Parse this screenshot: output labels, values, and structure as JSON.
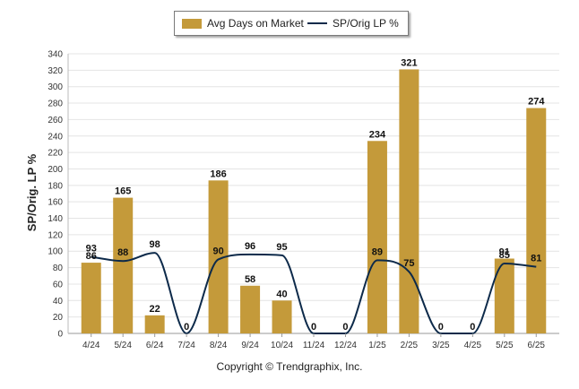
{
  "chart_data": {
    "type": "bar",
    "categories": [
      "4/24",
      "5/24",
      "6/24",
      "7/24",
      "8/24",
      "9/24",
      "10/24",
      "11/24",
      "12/24",
      "1/25",
      "2/25",
      "3/25",
      "4/25",
      "5/25",
      "6/25"
    ],
    "series": [
      {
        "name": "Avg Days on Market",
        "type": "bar",
        "color": "#c49a3a",
        "values": [
          86,
          165,
          22,
          0,
          186,
          58,
          40,
          0,
          0,
          234,
          321,
          0,
          0,
          91,
          274
        ]
      },
      {
        "name": "SP/Orig LP %",
        "type": "line",
        "color": "#0d2a4a",
        "values": [
          93,
          88,
          98,
          null,
          90,
          96,
          95,
          null,
          null,
          89,
          75,
          null,
          null,
          85,
          81
        ]
      }
    ],
    "ylabel": "SP/Orig. LP %",
    "xlabel": "",
    "ylim": [
      0,
      340
    ],
    "yticks": [
      0,
      20,
      40,
      60,
      80,
      100,
      120,
      140,
      160,
      180,
      200,
      220,
      240,
      260,
      280,
      300,
      320,
      340
    ],
    "grid": true,
    "legend_position": "top-center"
  },
  "copyright": "Copyright © Trendgraphix, Inc."
}
